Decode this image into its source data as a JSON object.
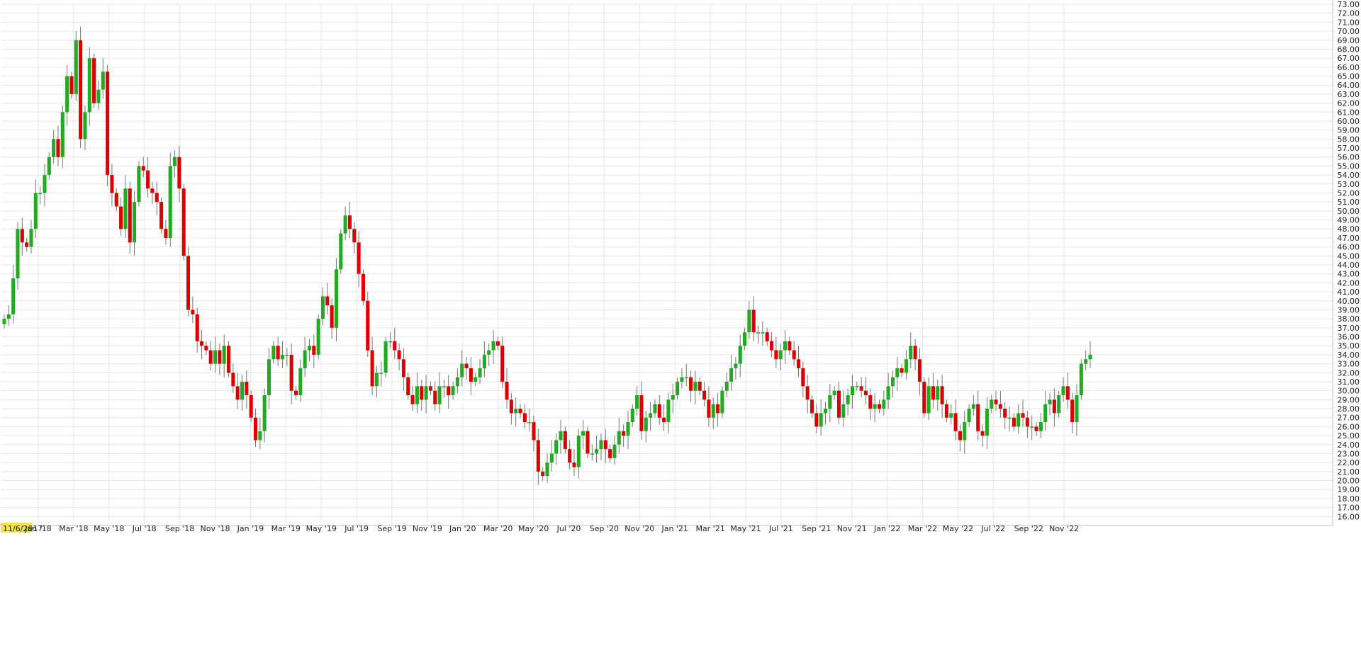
{
  "chart_data": {
    "type": "candlestick",
    "title": "",
    "xlabel": "",
    "ylabel": "",
    "ylim": [
      15,
      73
    ],
    "y_tick_step": 1,
    "y_tick_format": "2 decimals",
    "y_axis_position": "right",
    "grid": true,
    "up_color": "#22aa22",
    "down_color": "#dd0000",
    "wick_color": "#777777",
    "start_date_label": "11/6/2017",
    "start_date_highlight": "#f2e44a",
    "x_tick_labels": [
      "Jan '18",
      "Mar '18",
      "May '18",
      "Jul '18",
      "Sep '18",
      "Nov '18",
      "Jan '19",
      "Mar '19",
      "May '19",
      "Jul '19",
      "Sep '19",
      "Nov '19",
      "Jan '20",
      "Mar '20",
      "May '20",
      "Jul '20",
      "Sep '20",
      "Nov '20",
      "Jan '21",
      "Mar '21",
      "May '21",
      "Jul '21",
      "Sep '21",
      "Nov '21",
      "Jan '22",
      "Mar '22",
      "May '22",
      "Jul '22",
      "Sep '22",
      "Nov '22"
    ],
    "candle_interval": "weekly",
    "ohlc_closes": [
      38.0,
      38.5,
      42.5,
      48.0,
      46.5,
      46.0,
      48.0,
      52.0,
      52.0,
      54.0,
      56.0,
      58.0,
      56.0,
      61.0,
      65.0,
      63.0,
      69.0,
      58.0,
      61.0,
      67.0,
      62.0,
      63.5,
      65.5,
      54.0,
      52.0,
      50.5,
      48.0,
      52.5,
      46.5,
      51.0,
      55.0,
      54.5,
      52.5,
      52.0,
      51.0,
      48.0,
      47.0,
      55.0,
      56.0,
      52.5,
      45.0,
      39.0,
      38.5,
      35.5,
      35.0,
      34.5,
      33.0,
      34.5,
      33.0,
      35.0,
      32.0,
      30.5,
      29.0,
      31.0,
      29.5,
      27.0,
      24.5,
      25.5,
      29.5,
      33.5,
      35.0,
      33.5,
      34.0,
      34.0,
      30.0,
      29.5,
      32.5,
      34.5,
      35.0,
      34.0,
      38.0,
      40.5,
      39.5,
      37.0,
      43.5,
      47.5,
      49.5,
      48.0,
      46.5,
      43.0,
      40.0,
      34.5,
      30.5,
      32.0,
      32.0,
      35.5,
      35.5,
      34.5,
      33.5,
      31.5,
      29.5,
      28.5,
      30.5,
      29.0,
      30.5,
      30.0,
      28.5,
      30.5,
      30.5,
      29.5,
      30.5,
      31.5,
      33.0,
      32.5,
      31.0,
      31.5,
      32.5,
      34.0,
      34.5,
      35.5,
      35.0,
      31.0,
      29.0,
      27.5,
      28.0,
      27.5,
      26.5,
      26.5,
      24.5,
      21.0,
      20.5,
      22.0,
      23.0,
      24.5,
      25.5,
      23.5,
      22.0,
      21.5,
      25.0,
      25.5,
      23.0,
      23.0,
      23.5,
      24.5,
      23.5,
      22.5,
      24.0,
      25.5,
      25.0,
      26.5,
      28.0,
      29.5,
      25.5,
      27.0,
      27.5,
      28.5,
      27.0,
      26.5,
      29.0,
      29.5,
      31.0,
      31.5,
      31.5,
      30.0,
      31.0,
      30.0,
      29.0,
      27.0,
      28.5,
      27.5,
      30.0,
      31.0,
      32.5,
      33.0,
      35.0,
      36.5,
      39.0,
      36.5,
      36.5,
      36.5,
      35.5,
      34.5,
      33.5,
      34.5,
      35.5,
      34.5,
      33.5,
      32.5,
      30.5,
      29.0,
      27.5,
      26.0,
      27.5,
      28.0,
      29.5,
      30.0,
      27.0,
      28.5,
      29.5,
      30.5,
      30.5,
      30.0,
      29.5,
      28.0,
      28.5,
      28.0,
      29.0,
      30.5,
      31.5,
      32.5,
      32.0,
      33.5,
      35.0,
      33.5,
      31.0,
      27.5,
      30.5,
      29.0,
      30.5,
      28.5,
      27.0,
      27.5,
      25.5,
      24.5,
      26.5,
      28.0,
      28.5,
      25.5,
      25.0,
      28.0,
      29.0,
      28.5,
      28.0,
      27.0,
      27.0,
      26.0,
      27.5,
      27.0,
      26.0,
      26.0,
      25.5,
      26.5,
      28.5,
      29.0,
      27.5,
      29.5,
      30.5,
      29.0,
      26.5,
      29.5,
      33.0,
      33.5,
      34.0
    ]
  }
}
